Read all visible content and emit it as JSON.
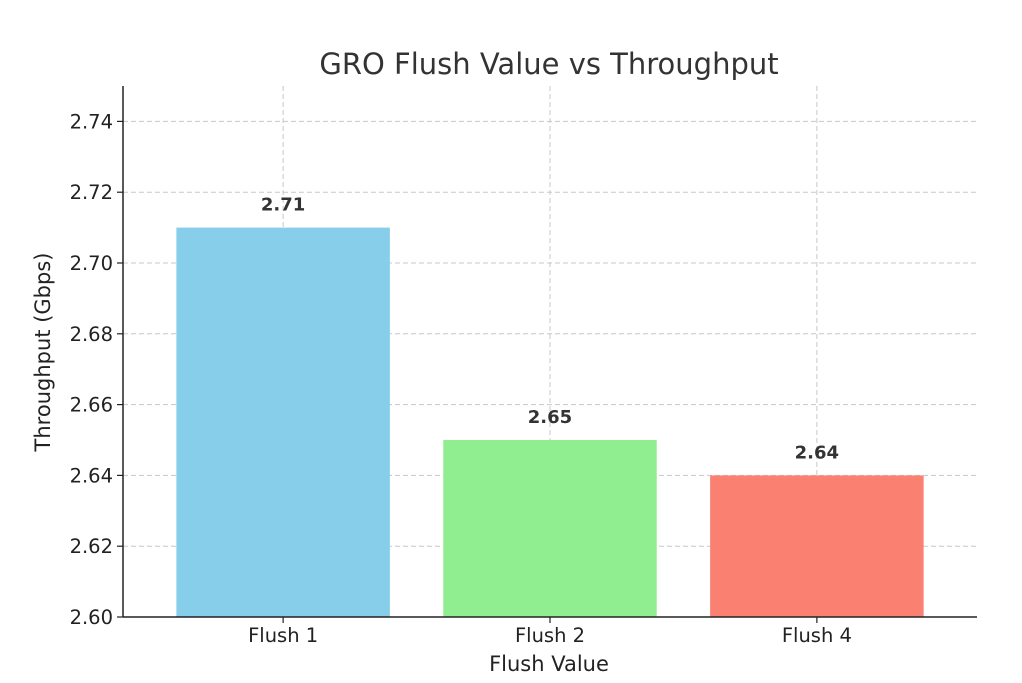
{
  "chart_data": {
    "type": "bar",
    "title": "GRO Flush Value vs Throughput",
    "xlabel": "Flush Value",
    "ylabel": "Throughput (Gbps)",
    "categories": [
      "Flush 1",
      "Flush 2",
      "Flush 4"
    ],
    "values": [
      2.71,
      2.65,
      2.64
    ],
    "value_labels": [
      "2.71",
      "2.65",
      "2.64"
    ],
    "colors": [
      "#87ceeb",
      "#90ee90",
      "#fa8072"
    ],
    "ylim": [
      2.6,
      2.75
    ],
    "yticks": [
      2.6,
      2.62,
      2.64,
      2.66,
      2.68,
      2.7,
      2.72,
      2.74
    ],
    "ytick_labels": [
      "2.60",
      "2.62",
      "2.64",
      "2.66",
      "2.68",
      "2.70",
      "2.72",
      "2.74"
    ],
    "grid": true,
    "legend": false
  }
}
